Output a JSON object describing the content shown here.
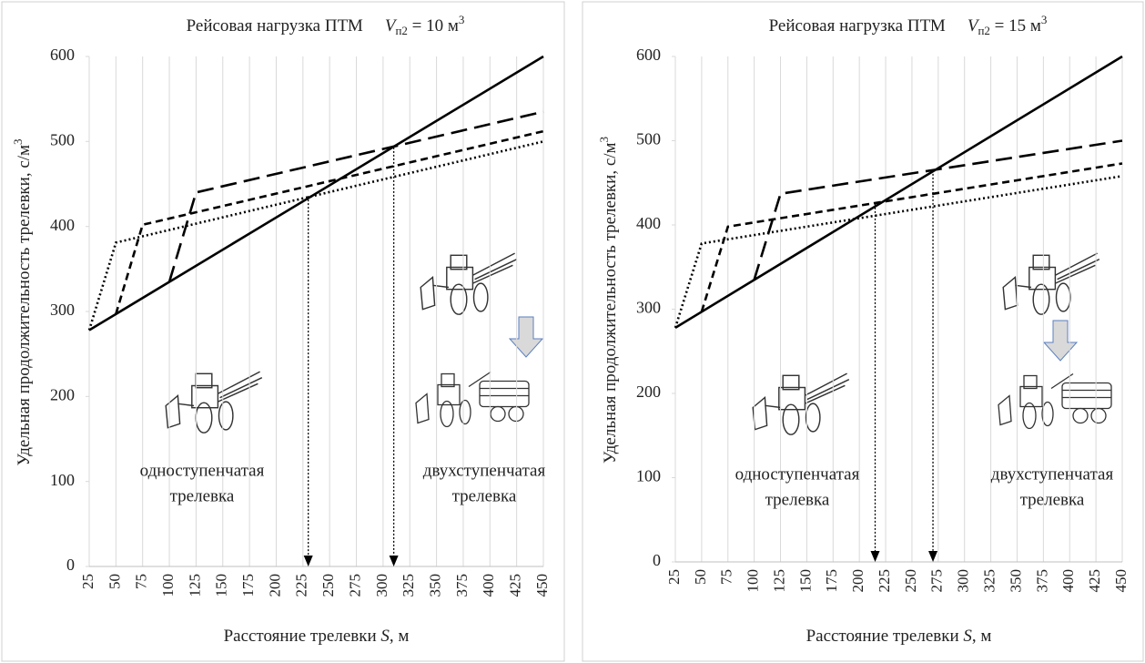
{
  "chart_data": [
    {
      "type": "line",
      "title": {
        "text": "Рейсовая нагрузка ПТМ",
        "var": "V",
        "sub": "п2",
        "rest": " = 10 м",
        "sup": "3"
      },
      "ylabel": {
        "text": "Удельная продолжительность трелевки, с/м",
        "sup": "3"
      },
      "xlabel": {
        "text": "Расстояние трелевки ",
        "var": "S",
        "rest": ", м"
      },
      "xlim": [
        25,
        450
      ],
      "xticks": [
        25,
        50,
        75,
        100,
        125,
        150,
        175,
        200,
        225,
        250,
        275,
        300,
        325,
        350,
        375,
        400,
        425,
        450
      ],
      "ylim": [
        0,
        600
      ],
      "yticks": [
        0,
        100,
        200,
        300,
        400,
        500,
        600
      ],
      "grid": true,
      "series": [
        {
          "color": "#000000",
          "dash": "none",
          "x": [
            25,
            450
          ],
          "values": [
            278,
            600
          ]
        },
        {
          "color": "#000000",
          "dash": "18 8",
          "x": [
            100,
            125,
            450
          ],
          "values": [
            335,
            440,
            535
          ]
        },
        {
          "color": "#000000",
          "dash": "8 5",
          "x": [
            50,
            75,
            450
          ],
          "values": [
            297,
            402,
            512
          ]
        },
        {
          "color": "#000000",
          "dash": "2 3",
          "x": [
            25,
            50,
            450
          ],
          "values": [
            278,
            381,
            500
          ]
        }
      ],
      "markers": [
        {
          "x": 230,
          "y": 436
        },
        {
          "x": 310,
          "y": 493
        }
      ],
      "annotations": [
        [
          "одноступенчатая",
          "трелевка"
        ],
        [
          "двухступенчатая",
          "трелевка"
        ]
      ]
    },
    {
      "type": "line",
      "title": {
        "text": "Рейсовая нагрузка ПТМ",
        "var": "V",
        "sub": "п2",
        "rest": " = 15 м",
        "sup": "3"
      },
      "ylabel": {
        "text": "Удельная продолжительность трелевки, с/м",
        "sup": "3"
      },
      "xlabel": {
        "text": "Расстояние трелевки ",
        "var": "S",
        "rest": ", м"
      },
      "xlim": [
        25,
        450
      ],
      "xticks": [
        25,
        50,
        75,
        100,
        125,
        150,
        175,
        200,
        225,
        250,
        275,
        300,
        325,
        350,
        375,
        400,
        425,
        450
      ],
      "ylim": [
        0,
        600
      ],
      "yticks": [
        0,
        100,
        200,
        300,
        400,
        500,
        600
      ],
      "grid": true,
      "series": [
        {
          "color": "#000000",
          "dash": "none",
          "x": [
            25,
            450
          ],
          "values": [
            278,
            600
          ]
        },
        {
          "color": "#000000",
          "dash": "18 8",
          "x": [
            100,
            125,
            450
          ],
          "values": [
            335,
            437,
            500
          ]
        },
        {
          "color": "#000000",
          "dash": "8 5",
          "x": [
            50,
            75,
            450
          ],
          "values": [
            297,
            398,
            473
          ]
        },
        {
          "color": "#000000",
          "dash": "2 3",
          "x": [
            25,
            50,
            450
          ],
          "values": [
            278,
            378,
            458
          ]
        }
      ],
      "markers": [
        {
          "x": 215,
          "y": 425
        },
        {
          "x": 270,
          "y": 465
        }
      ],
      "annotations": [
        [
          "одноступенчатая",
          "трелевка"
        ],
        [
          "двухступенчатая",
          "трелевка"
        ]
      ]
    }
  ]
}
